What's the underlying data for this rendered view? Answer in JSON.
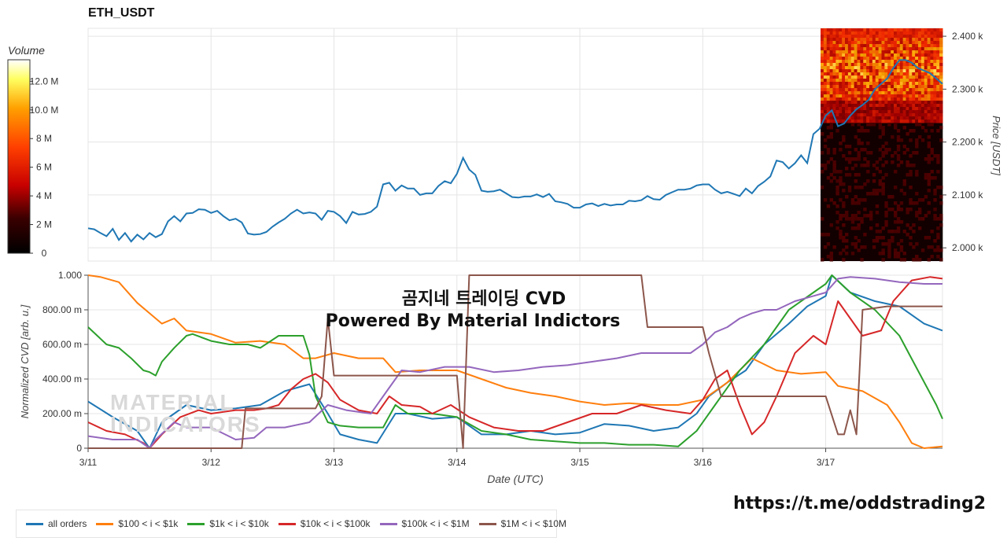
{
  "title": "ETH_USDT",
  "overlay_title": "곰지네 트레이딩 CVD",
  "overlay_subtitle": "Powered By Material Indictors",
  "link_text": "https://t.me/oddstrading2",
  "watermark": [
    "MATERIAL",
    "INDICATORS"
  ],
  "colorbar": {
    "label": "Volume",
    "ticks": [
      "12.0 M",
      "10.0 M",
      "8 M",
      "6 M",
      "4 M",
      "2 M",
      "0"
    ],
    "tick_values": [
      12,
      10,
      8,
      6,
      4,
      2,
      0
    ],
    "max": 13.5
  },
  "chart_data": [
    {
      "type": "line",
      "title": "ETH_USDT",
      "ylabel": "Price [USDT]",
      "ylim": [
        1975,
        2415
      ],
      "yticks": [
        2000,
        2100,
        2200,
        2300,
        2400
      ],
      "ytick_labels": [
        "2.000 k",
        "2.100 k",
        "2.200 k",
        "2.300 k",
        "2.400 k"
      ],
      "xlim": [
        0,
        6.95
      ],
      "series": [
        {
          "name": "price",
          "color": "#1f77b4",
          "x": [
            0,
            0.05,
            0.1,
            0.15,
            0.2,
            0.25,
            0.3,
            0.35,
            0.4,
            0.45,
            0.5,
            0.55,
            0.6,
            0.65,
            0.7,
            0.75,
            0.8,
            0.85,
            0.9,
            0.95,
            1.0,
            1.05,
            1.1,
            1.15,
            1.2,
            1.25,
            1.3,
            1.35,
            1.4,
            1.45,
            1.5,
            1.55,
            1.6,
            1.65,
            1.7,
            1.75,
            1.8,
            1.85,
            1.9,
            1.95,
            2.0,
            2.05,
            2.1,
            2.15,
            2.2,
            2.25,
            2.3,
            2.35,
            2.4,
            2.45,
            2.5,
            2.55,
            2.6,
            2.65,
            2.7,
            2.75,
            2.8,
            2.85,
            2.9,
            2.95,
            3.0,
            3.05,
            3.1,
            3.15,
            3.2,
            3.25,
            3.3,
            3.35,
            3.4,
            3.45,
            3.5,
            3.55,
            3.6,
            3.65,
            3.7,
            3.75,
            3.8,
            3.85,
            3.9,
            3.95,
            4.0,
            4.05,
            4.1,
            4.15,
            4.2,
            4.25,
            4.3,
            4.35,
            4.4,
            4.45,
            4.5,
            4.55,
            4.6,
            4.65,
            4.7,
            4.75,
            4.8,
            4.85,
            4.9,
            4.95,
            5.0,
            5.05,
            5.1,
            5.15,
            5.2,
            5.25,
            5.3,
            5.35,
            5.4,
            5.45,
            5.5,
            5.55,
            5.6,
            5.65,
            5.7,
            5.75,
            5.8,
            5.85,
            5.9,
            5.95,
            6.0,
            6.05,
            6.1,
            6.15,
            6.2,
            6.25,
            6.3,
            6.35,
            6.4,
            6.45,
            6.5,
            6.55,
            6.6,
            6.65,
            6.7,
            6.75,
            6.8,
            6.85,
            6.9,
            6.95
          ],
          "y": [
            2037,
            2035,
            2028,
            2022,
            2036,
            2015,
            2028,
            2012,
            2025,
            2016,
            2028,
            2020,
            2026,
            2050,
            2060,
            2050,
            2065,
            2066,
            2073,
            2072,
            2066,
            2070,
            2060,
            2052,
            2055,
            2048,
            2027,
            2025,
            2026,
            2030,
            2040,
            2048,
            2055,
            2065,
            2072,
            2065,
            2067,
            2065,
            2053,
            2070,
            2068,
            2060,
            2047,
            2068,
            2063,
            2064,
            2068,
            2078,
            2120,
            2123,
            2108,
            2118,
            2112,
            2112,
            2100,
            2103,
            2103,
            2117,
            2126,
            2122,
            2140,
            2170,
            2148,
            2138,
            2108,
            2106,
            2107,
            2110,
            2103,
            2096,
            2095,
            2097,
            2097,
            2101,
            2096,
            2102,
            2088,
            2086,
            2083,
            2076,
            2076,
            2082,
            2084,
            2079,
            2083,
            2080,
            2082,
            2082,
            2089,
            2088,
            2090,
            2098,
            2092,
            2091,
            2100,
            2105,
            2110,
            2110,
            2112,
            2118,
            2120,
            2120,
            2110,
            2103,
            2106,
            2102,
            2098,
            2112,
            2103,
            2117,
            2125,
            2135,
            2165,
            2162,
            2150,
            2160,
            2175,
            2160,
            2215,
            2225,
            2250,
            2260,
            2230,
            2235,
            2250,
            2262,
            2270,
            2280,
            2300,
            2310,
            2320,
            2340,
            2355,
            2355,
            2350,
            2340,
            2335,
            2330,
            2320,
            2310
          ]
        }
      ]
    },
    {
      "type": "line",
      "xlabel": "Date (UTC)",
      "ylabel": "Normalized CVD [arb. u.]",
      "ylim": [
        0,
        1.0
      ],
      "yticks": [
        0,
        0.2,
        0.4,
        0.6,
        0.8,
        1.0
      ],
      "ytick_labels": [
        "0",
        "200.00 m",
        "400.00 m",
        "600.00 m",
        "800.00 m",
        "1.000"
      ],
      "xlim": [
        0,
        6.95
      ],
      "xticks": [
        0,
        1,
        2,
        3,
        4,
        5,
        6
      ],
      "xtick_labels": [
        "3/11",
        "3/12",
        "3/13",
        "3/14",
        "3/15",
        "3/16",
        "3/17"
      ],
      "series": [
        {
          "name": "all orders",
          "color": "#1f77b4",
          "x": [
            0,
            0.2,
            0.4,
            0.5,
            0.6,
            0.8,
            1.0,
            1.2,
            1.4,
            1.6,
            1.8,
            1.95,
            2.05,
            2.2,
            2.35,
            2.5,
            2.6,
            2.8,
            3.0,
            3.2,
            3.4,
            3.6,
            3.8,
            4.0,
            4.2,
            4.4,
            4.6,
            4.8,
            4.95,
            5.05,
            5.2,
            5.35,
            5.5,
            5.7,
            5.85,
            6.0,
            6.05,
            6.2,
            6.4,
            6.6,
            6.8,
            6.95
          ],
          "y": [
            0.27,
            0.18,
            0.1,
            0.0,
            0.15,
            0.25,
            0.22,
            0.23,
            0.25,
            0.33,
            0.37,
            0.2,
            0.08,
            0.05,
            0.03,
            0.2,
            0.2,
            0.17,
            0.18,
            0.08,
            0.08,
            0.1,
            0.08,
            0.09,
            0.14,
            0.13,
            0.1,
            0.12,
            0.2,
            0.3,
            0.38,
            0.45,
            0.6,
            0.72,
            0.82,
            0.88,
            1.0,
            0.9,
            0.85,
            0.82,
            0.72,
            0.68
          ]
        },
        {
          "name": "$100 < i < $1k",
          "color": "#ff7f0e",
          "x": [
            0,
            0.1,
            0.25,
            0.4,
            0.5,
            0.6,
            0.7,
            0.8,
            1.0,
            1.2,
            1.4,
            1.6,
            1.75,
            1.85,
            2.0,
            2.2,
            2.4,
            2.5,
            2.7,
            3.0,
            3.2,
            3.4,
            3.6,
            3.8,
            4.0,
            4.2,
            4.4,
            4.6,
            4.8,
            5.0,
            5.2,
            5.4,
            5.6,
            5.8,
            6.0,
            6.1,
            6.3,
            6.5,
            6.6,
            6.7,
            6.8,
            6.95
          ],
          "y": [
            1.0,
            0.99,
            0.96,
            0.84,
            0.78,
            0.72,
            0.75,
            0.68,
            0.66,
            0.61,
            0.62,
            0.6,
            0.52,
            0.52,
            0.55,
            0.52,
            0.52,
            0.44,
            0.45,
            0.45,
            0.4,
            0.35,
            0.32,
            0.3,
            0.27,
            0.25,
            0.26,
            0.25,
            0.25,
            0.28,
            0.38,
            0.52,
            0.45,
            0.43,
            0.44,
            0.36,
            0.33,
            0.25,
            0.15,
            0.03,
            0.0,
            0.01
          ]
        },
        {
          "name": "$1k < i < $10k",
          "color": "#2ca02c",
          "x": [
            0,
            0.15,
            0.25,
            0.35,
            0.45,
            0.5,
            0.55,
            0.6,
            0.7,
            0.8,
            0.85,
            1.0,
            1.15,
            1.3,
            1.4,
            1.55,
            1.65,
            1.75,
            1.8,
            1.85,
            1.95,
            2.05,
            2.2,
            2.4,
            2.5,
            2.6,
            2.8,
            3.0,
            3.2,
            3.4,
            3.6,
            3.8,
            4.0,
            4.2,
            4.4,
            4.6,
            4.8,
            4.95,
            5.1,
            5.3,
            5.5,
            5.7,
            5.9,
            6.0,
            6.05,
            6.2,
            6.4,
            6.6,
            6.75,
            6.9,
            6.95
          ],
          "y": [
            0.7,
            0.6,
            0.58,
            0.52,
            0.45,
            0.44,
            0.42,
            0.5,
            0.58,
            0.65,
            0.66,
            0.62,
            0.6,
            0.6,
            0.58,
            0.65,
            0.65,
            0.65,
            0.54,
            0.3,
            0.15,
            0.13,
            0.12,
            0.12,
            0.25,
            0.2,
            0.2,
            0.18,
            0.1,
            0.08,
            0.05,
            0.04,
            0.03,
            0.03,
            0.02,
            0.02,
            0.01,
            0.1,
            0.25,
            0.45,
            0.6,
            0.8,
            0.9,
            0.95,
            1.0,
            0.9,
            0.8,
            0.65,
            0.45,
            0.25,
            0.17
          ]
        },
        {
          "name": "$10k < i < $100k",
          "color": "#d62728",
          "x": [
            0,
            0.15,
            0.3,
            0.45,
            0.5,
            0.6,
            0.75,
            0.9,
            1.0,
            1.2,
            1.35,
            1.45,
            1.55,
            1.65,
            1.75,
            1.85,
            1.95,
            2.05,
            2.2,
            2.35,
            2.45,
            2.55,
            2.7,
            2.8,
            2.95,
            3.1,
            3.3,
            3.5,
            3.7,
            3.9,
            4.1,
            4.3,
            4.5,
            4.7,
            4.9,
            5.0,
            5.1,
            5.2,
            5.3,
            5.4,
            5.5,
            5.6,
            5.75,
            5.9,
            6.0,
            6.1,
            6.2,
            6.3,
            6.45,
            6.55,
            6.7,
            6.85,
            6.95
          ],
          "y": [
            0.15,
            0.1,
            0.08,
            0.03,
            0.0,
            0.08,
            0.18,
            0.22,
            0.2,
            0.22,
            0.22,
            0.23,
            0.25,
            0.34,
            0.4,
            0.43,
            0.38,
            0.28,
            0.22,
            0.2,
            0.3,
            0.25,
            0.24,
            0.2,
            0.25,
            0.18,
            0.12,
            0.1,
            0.1,
            0.15,
            0.2,
            0.2,
            0.25,
            0.22,
            0.2,
            0.28,
            0.4,
            0.45,
            0.25,
            0.08,
            0.15,
            0.3,
            0.55,
            0.65,
            0.6,
            0.85,
            0.75,
            0.65,
            0.68,
            0.85,
            0.97,
            0.99,
            0.98
          ]
        },
        {
          "name": "$100k < i < $1M",
          "color": "#9467bd",
          "x": [
            0,
            0.2,
            0.4,
            0.5,
            0.55,
            0.7,
            0.8,
            1.0,
            1.2,
            1.35,
            1.45,
            1.6,
            1.8,
            1.95,
            2.1,
            2.3,
            2.45,
            2.55,
            2.7,
            2.9,
            3.1,
            3.3,
            3.5,
            3.7,
            3.9,
            4.1,
            4.3,
            4.5,
            4.7,
            4.9,
            5.0,
            5.1,
            5.2,
            5.3,
            5.4,
            5.5,
            5.6,
            5.75,
            5.9,
            6.0,
            6.1,
            6.2,
            6.4,
            6.6,
            6.8,
            6.95
          ],
          "y": [
            0.07,
            0.05,
            0.05,
            0.0,
            0.05,
            0.15,
            0.12,
            0.12,
            0.05,
            0.06,
            0.12,
            0.12,
            0.15,
            0.25,
            0.22,
            0.2,
            0.35,
            0.45,
            0.44,
            0.47,
            0.47,
            0.44,
            0.45,
            0.47,
            0.48,
            0.5,
            0.52,
            0.55,
            0.55,
            0.55,
            0.6,
            0.67,
            0.7,
            0.75,
            0.78,
            0.8,
            0.8,
            0.85,
            0.88,
            0.9,
            0.98,
            0.99,
            0.98,
            0.96,
            0.95,
            0.95
          ]
        },
        {
          "name": "$1M < i < $10M",
          "color": "#8c564b",
          "x": [
            0,
            1.25,
            1.28,
            1.45,
            1.85,
            1.9,
            1.95,
            2.0,
            2.05,
            2.3,
            2.5,
            2.6,
            2.9,
            3.0,
            3.05,
            3.1,
            3.15,
            3.5,
            3.85,
            4.5,
            4.55,
            5.0,
            5.05,
            5.15,
            5.2,
            5.4,
            5.6,
            6.0,
            6.1,
            6.15,
            6.2,
            6.25,
            6.3,
            6.5,
            6.95
          ],
          "y": [
            0.0,
            0.0,
            0.23,
            0.23,
            0.23,
            0.3,
            0.75,
            0.42,
            0.42,
            0.42,
            0.42,
            0.42,
            0.42,
            0.42,
            0.0,
            1.0,
            1.0,
            1.0,
            1.0,
            1.0,
            0.7,
            0.7,
            0.55,
            0.3,
            0.3,
            0.3,
            0.3,
            0.3,
            0.08,
            0.08,
            0.22,
            0.08,
            0.8,
            0.82,
            0.82
          ]
        }
      ]
    }
  ],
  "legend_position": "bottom-left"
}
